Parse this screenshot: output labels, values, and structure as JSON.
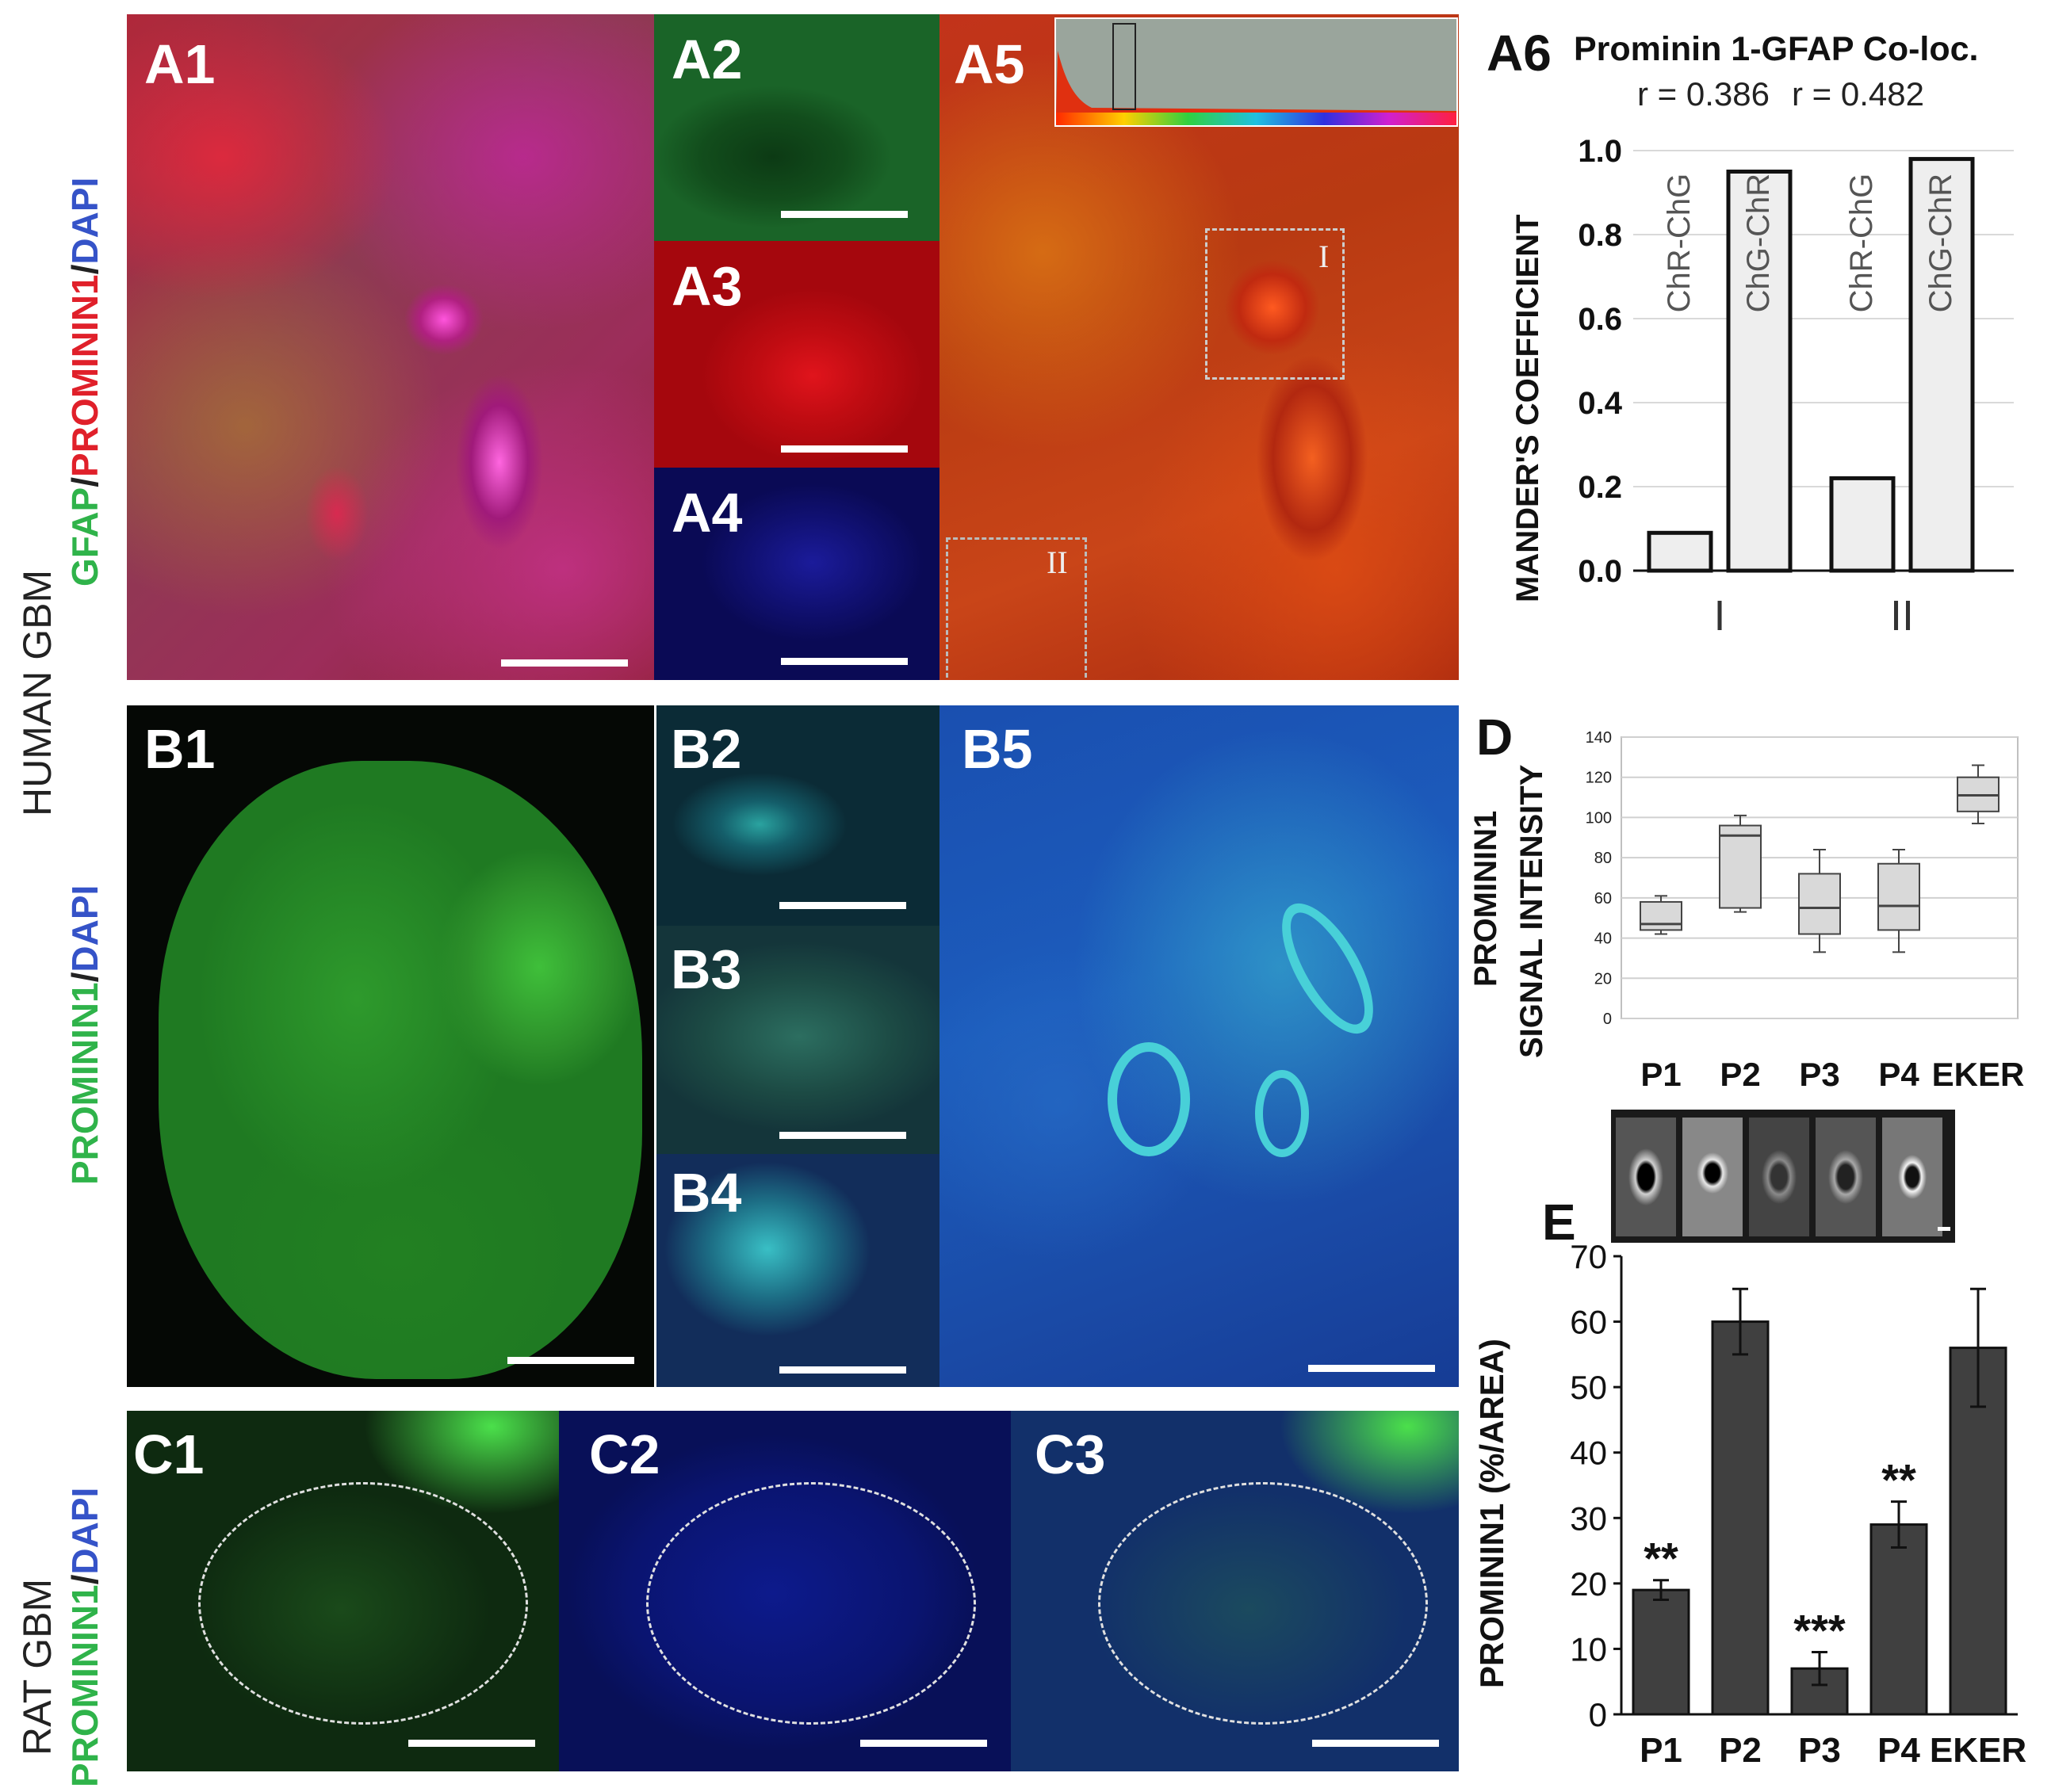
{
  "side_labels": {
    "human_gbm": "HUMAN GBM",
    "rat_gbm": "RAT GBM",
    "a_stain": {
      "gfap": "GFAP",
      "slash1": "/",
      "prominin": "PROMININ1",
      "slash2": "/",
      "dapi": "DAPI"
    },
    "b_stain": {
      "prominin": "PROMININ1",
      "slash": "/",
      "dapi": "DAPI"
    },
    "c_stain": {
      "prominin": "PROMININ1",
      "slash": "/",
      "dapi": "DAPI"
    }
  },
  "panel_labels": {
    "A1": "A1",
    "A2": "A2",
    "A3": "A3",
    "A4": "A4",
    "A5": "A5",
    "A6": "A6",
    "B1": "B1",
    "B2": "B2",
    "B3": "B3",
    "B4": "B4",
    "B5": "B5",
    "C1": "C1",
    "C2": "C2",
    "C3": "C3",
    "D": "D",
    "E": "E"
  },
  "roi_labels": {
    "roi1": "I",
    "roi2": "II"
  },
  "colors": {
    "green": "#2fb34a",
    "red": "#e0202a",
    "blue": "#3553c8",
    "bar_light": "#eeeeee",
    "bar_dark": "#404040",
    "box_fill": "#d9d9d9"
  },
  "chart_data": [
    {
      "id": "A6",
      "type": "bar",
      "title": "Prominin 1-GFAP Co-loc.",
      "annotations": [
        "r = 0.386",
        "r = 0.482"
      ],
      "ylabel": "MANDER'S COEFFICIENT",
      "ylim": [
        0,
        1.0
      ],
      "yticks": [
        "0.0",
        "0.2",
        "0.4",
        "0.6",
        "0.8",
        "1.0"
      ],
      "grid": true,
      "groups": [
        "I",
        "II"
      ],
      "bars": [
        {
          "label": "ChR-ChG",
          "group": "I",
          "value": 0.09
        },
        {
          "label": "ChG-ChR",
          "group": "I",
          "value": 0.95
        },
        {
          "label": "ChR-ChG",
          "group": "II",
          "value": 0.22
        },
        {
          "label": "ChG-ChR",
          "group": "II",
          "value": 0.98
        }
      ]
    },
    {
      "id": "D",
      "type": "box",
      "ylabel_line1": "PROMININ1",
      "ylabel_line2": "SIGNAL INTENSITY",
      "ylim": [
        0,
        140
      ],
      "yticks": [
        "0",
        "20",
        "40",
        "60",
        "80",
        "100",
        "120",
        "140"
      ],
      "grid": true,
      "categories": [
        "P1",
        "P2",
        "P3",
        "P4",
        "EKER"
      ],
      "boxes": [
        {
          "min": 42,
          "q1": 44,
          "median": 47,
          "q3": 58,
          "max": 61
        },
        {
          "min": 53,
          "q1": 55,
          "median": 91,
          "q3": 96,
          "max": 101
        },
        {
          "min": 33,
          "q1": 42,
          "median": 55,
          "q3": 72,
          "max": 84
        },
        {
          "min": 33,
          "q1": 44,
          "median": 56,
          "q3": 77,
          "max": 84
        },
        {
          "min": 97,
          "q1": 103,
          "median": 111,
          "q3": 120,
          "max": 126
        }
      ]
    },
    {
      "id": "E",
      "type": "bar",
      "ylabel": "PROMININ1 (%/AREA)",
      "ylim": [
        0,
        70
      ],
      "yticks": [
        "0",
        "10",
        "20",
        "30",
        "40",
        "50",
        "60",
        "70"
      ],
      "grid": false,
      "categories": [
        "P1",
        "P2",
        "P3",
        "P4",
        "EKER"
      ],
      "values": [
        19,
        60,
        7,
        29,
        56
      ],
      "errors": [
        1.5,
        5,
        2.5,
        3.5,
        9
      ],
      "significance": [
        "**",
        "",
        "***",
        "**",
        ""
      ]
    }
  ]
}
